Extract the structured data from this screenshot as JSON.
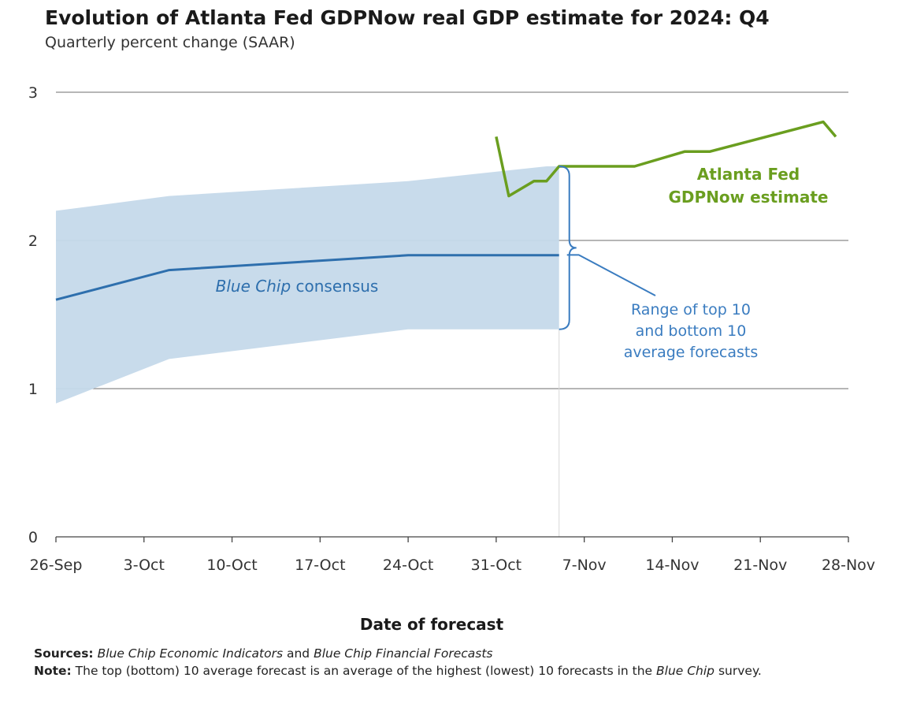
{
  "title": "Evolution of Atlanta Fed GDPNow real GDP estimate for 2024: Q4",
  "subtitle": "Quarterly percent change (SAAR)",
  "colors": {
    "gdpnow": "#6a9e1f",
    "consensus": "#2e6fad",
    "band": "#c5d9ea",
    "annotation": "#3a7cc0"
  },
  "chart_data": {
    "type": "line",
    "xlabel": "Date of forecast",
    "ylabel": "",
    "ylim": [
      0,
      3
    ],
    "yticks": [
      0,
      1,
      2,
      3
    ],
    "xticks": [
      "26-Sep",
      "3-Oct",
      "10-Oct",
      "17-Oct",
      "24-Oct",
      "31-Oct",
      "7-Nov",
      "14-Nov",
      "21-Nov",
      "28-Nov"
    ],
    "x_domain_days": [
      0,
      63
    ],
    "grid": true,
    "series": [
      {
        "name": "Atlanta Fed GDPNow estimate",
        "kind": "line",
        "points": [
          [
            35,
            2.7
          ],
          [
            36,
            2.3
          ],
          [
            38,
            2.4
          ],
          [
            39,
            2.4
          ],
          [
            40,
            2.5
          ],
          [
            46,
            2.5
          ],
          [
            50,
            2.6
          ],
          [
            52,
            2.6
          ],
          [
            61,
            2.8
          ],
          [
            62,
            2.7
          ]
        ]
      },
      {
        "name": "Blue Chip consensus",
        "kind": "line",
        "points": [
          [
            0,
            1.6
          ],
          [
            9,
            1.8
          ],
          [
            28,
            1.9
          ],
          [
            40,
            1.9
          ]
        ]
      },
      {
        "name": "Range of top 10 and bottom 10 average forecasts",
        "kind": "band",
        "upper": [
          [
            0,
            2.2
          ],
          [
            9,
            2.3
          ],
          [
            28,
            2.4
          ],
          [
            39,
            2.5
          ],
          [
            40,
            2.5
          ]
        ],
        "lower": [
          [
            0,
            0.9
          ],
          [
            9,
            1.2
          ],
          [
            28,
            1.4
          ],
          [
            40,
            1.4
          ]
        ]
      }
    ],
    "annotations": {
      "gdpnow_label": [
        "Atlanta Fed",
        "GDPNow estimate"
      ],
      "consensus_label_italic": "Blue Chip",
      "consensus_label_rest": " consensus",
      "range_label": [
        "Range of top 10",
        "and bottom 10",
        "average forecasts"
      ]
    }
  },
  "footer": {
    "sources_label": "Sources:",
    "sources_italic_1": "Blue Chip Economic Indicators",
    "sources_and": " and ",
    "sources_italic_2": "Blue Chip Financial Forecasts",
    "note_label": "Note:",
    "note_text": " The top (bottom) 10 average forecast is an average of the highest (lowest) 10 forecasts in the ",
    "note_italic": "Blue Chip",
    "note_end": " survey."
  }
}
